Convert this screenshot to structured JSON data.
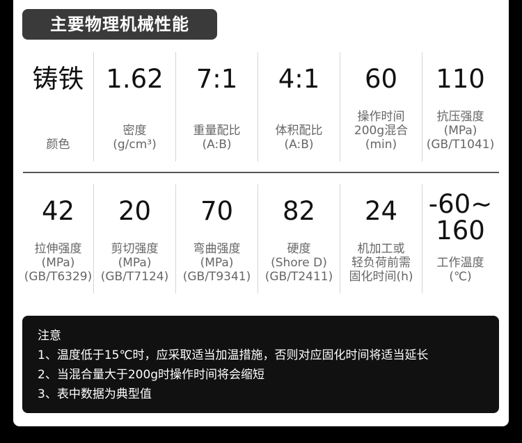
{
  "title": "主要物理机械性能",
  "row1": [
    {
      "value": "铸铁",
      "label": [
        "颜色"
      ]
    },
    {
      "value": "1.62",
      "label": [
        "密度",
        "(g/cm³)"
      ]
    },
    {
      "value": "7:1",
      "label": [
        "重量配比",
        "(A:B)"
      ]
    },
    {
      "value": "4:1",
      "label": [
        "体积配比",
        "(A:B)"
      ]
    },
    {
      "value": "60",
      "label": [
        "操作时间",
        "200g混合",
        "(min)"
      ]
    },
    {
      "value": "110",
      "label": [
        "抗压强度",
        "(MPa)",
        "(GB/T1041)"
      ]
    }
  ],
  "row2": [
    {
      "value": "42",
      "label": [
        "拉伸强度",
        "(MPa)",
        "(GB/T6329)"
      ]
    },
    {
      "value": "20",
      "label": [
        "剪切强度",
        "(MPa)",
        "(GB/T7124)"
      ]
    },
    {
      "value": "70",
      "label": [
        "弯曲强度",
        "(MPa)",
        "(GB/T9341)"
      ]
    },
    {
      "value": "82",
      "label": [
        "硬度",
        "(Shore D)",
        "(GB/T2411)"
      ]
    },
    {
      "value": "24",
      "label": [
        "机加工或",
        "轻负荷前需",
        "固化时间(h)"
      ]
    },
    {
      "value": [
        "-60~",
        "160"
      ],
      "label": [
        "工作温度",
        "(℃)"
      ]
    }
  ],
  "notes": {
    "heading": "注意",
    "items": [
      "1、温度低于15℃时，应采取适当加温措施，否则对应固化时间将适当延长",
      "2、当混合量大于200g时操作时间将会缩短",
      "3、表中数据为典型值"
    ]
  }
}
